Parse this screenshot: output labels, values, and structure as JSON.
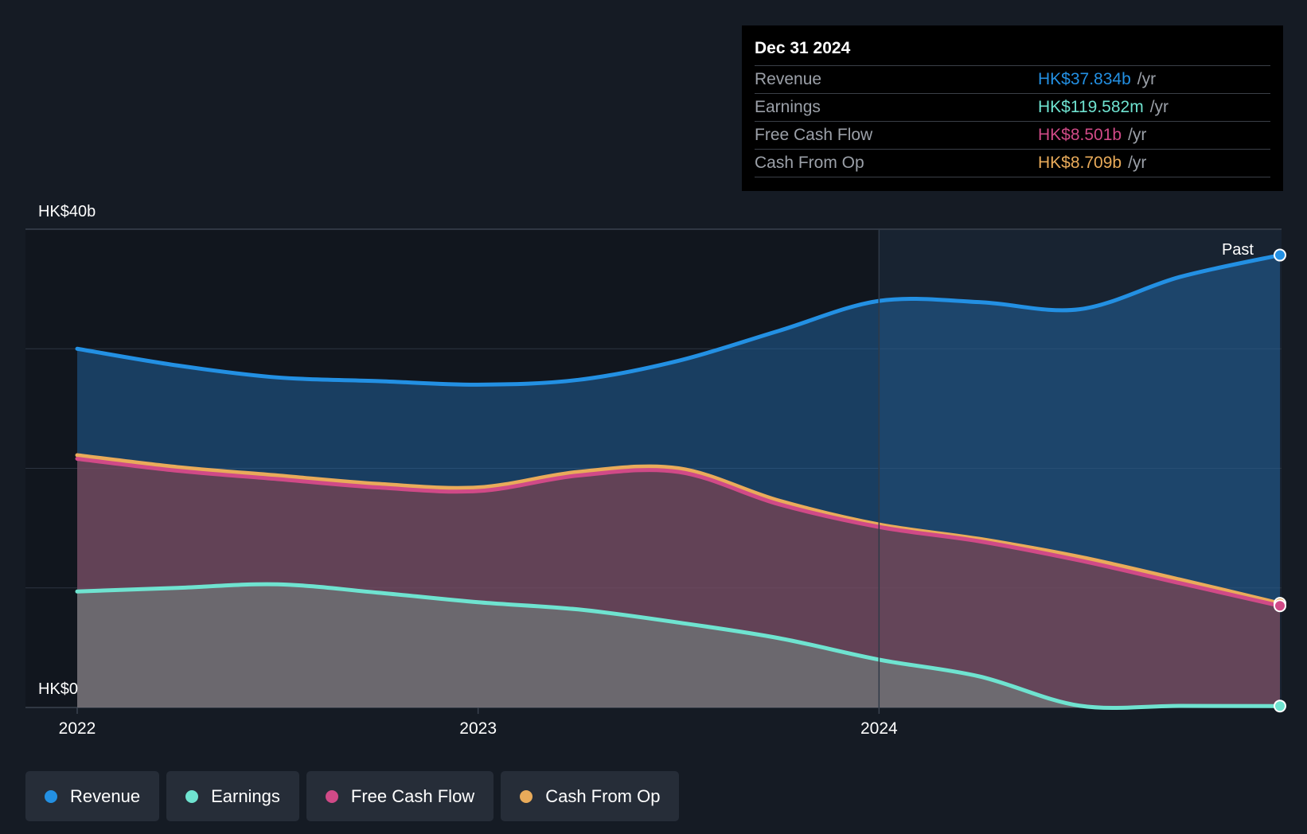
{
  "chart_data": {
    "type": "area",
    "x": [
      2022.0,
      2022.25,
      2022.5,
      2022.75,
      2023.0,
      2023.25,
      2023.5,
      2023.75,
      2024.0,
      2024.25,
      2024.5,
      2024.75,
      2025.0
    ],
    "series": [
      {
        "name": "Revenue",
        "color": "#2390e3",
        "values": [
          30.0,
          28.6,
          27.6,
          27.3,
          27.0,
          27.4,
          29.0,
          31.5,
          34.0,
          33.9,
          33.3,
          36.0,
          37.834
        ]
      },
      {
        "name": "Cash From Op",
        "color": "#e9ab5a",
        "values": [
          21.1,
          20.1,
          19.4,
          18.7,
          18.4,
          19.7,
          20.0,
          17.3,
          15.3,
          14.1,
          12.6,
          10.7,
          8.709
        ]
      },
      {
        "name": "Free Cash Flow",
        "color": "#d04a87",
        "values": [
          20.8,
          19.8,
          19.1,
          18.4,
          18.1,
          19.4,
          19.7,
          17.0,
          15.1,
          13.9,
          12.3,
          10.4,
          8.501
        ]
      },
      {
        "name": "Earnings",
        "color": "#6fe3d0",
        "values": [
          9.7,
          10.0,
          10.3,
          9.6,
          8.8,
          8.2,
          7.1,
          5.8,
          4.0,
          2.6,
          0.15,
          0.13,
          0.12
        ]
      }
    ],
    "y_axis": {
      "labels": [
        "HK$40b",
        "HK$0"
      ],
      "ylim": [
        0,
        40
      ],
      "gridlines": [
        10,
        20,
        30
      ]
    },
    "x_axis": {
      "tick_labels": [
        "2022",
        "2023",
        "2024"
      ],
      "tick_values": [
        2022,
        2023,
        2024
      ]
    },
    "past_label": "Past",
    "highlight_start": 2024.0
  },
  "tooltip": {
    "date": "Dec 31 2024",
    "rows": [
      {
        "label": "Revenue",
        "value": "HK$37.834b",
        "unit": "/yr",
        "color": "#2390e3"
      },
      {
        "label": "Earnings",
        "value": "HK$119.582m",
        "unit": "/yr",
        "color": "#6fe3d0"
      },
      {
        "label": "Free Cash Flow",
        "value": "HK$8.501b",
        "unit": "/yr",
        "color": "#d04a87"
      },
      {
        "label": "Cash From Op",
        "value": "HK$8.709b",
        "unit": "/yr",
        "color": "#e9ab5a"
      }
    ]
  },
  "legend": [
    {
      "label": "Revenue",
      "color": "#2390e3"
    },
    {
      "label": "Earnings",
      "color": "#6fe3d0"
    },
    {
      "label": "Free Cash Flow",
      "color": "#d04a87"
    },
    {
      "label": "Cash From Op",
      "color": "#e9ab5a"
    }
  ]
}
